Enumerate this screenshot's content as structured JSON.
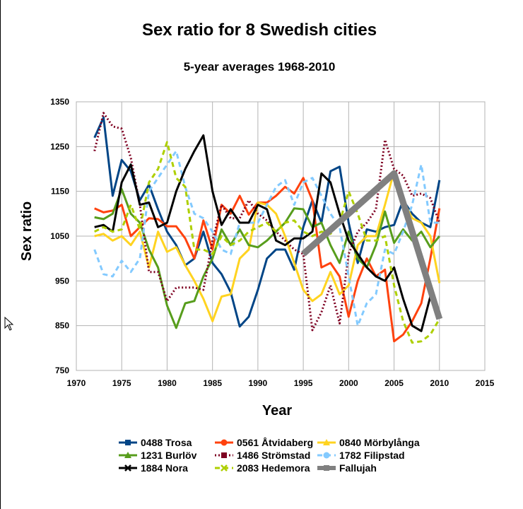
{
  "chart_data": {
    "type": "line",
    "title": "Sex ratio for 8 Swedish cities",
    "subtitle": "5-year averages 1968-2010",
    "xlabel": "Year",
    "ylabel": "Sex ratio",
    "xlim": [
      1970,
      2015
    ],
    "ylim": [
      750,
      1350
    ],
    "xticks": [
      1970,
      1975,
      1980,
      1985,
      1990,
      1995,
      2000,
      2005,
      2010,
      2015
    ],
    "yticks": [
      750,
      850,
      950,
      1050,
      1150,
      1250,
      1350
    ],
    "grid": true,
    "legend_position": "bottom",
    "x": [
      1972,
      1973,
      1974,
      1975,
      1976,
      1977,
      1978,
      1979,
      1980,
      1981,
      1982,
      1983,
      1984,
      1985,
      1986,
      1987,
      1988,
      1989,
      1990,
      1991,
      1992,
      1993,
      1994,
      1995,
      1996,
      1997,
      1998,
      1999,
      2000,
      2001,
      2002,
      2003,
      2004,
      2005,
      2006,
      2007,
      2008,
      2009,
      2010
    ],
    "series": [
      {
        "name": "0488 Trosa",
        "color": "#004586",
        "style": "solid",
        "width": 3,
        "marker": "square",
        "values": [
          1270,
          1315,
          1140,
          1220,
          1195,
          1130,
          1165,
          1110,
          1060,
          1030,
          985,
          1000,
          1060,
          990,
          965,
          925,
          848,
          870,
          930,
          1000,
          1020,
          1020,
          975,
          1070,
          1130,
          1080,
          1195,
          1205,
          1080,
          990,
          1065,
          1060,
          1070,
          1075,
          1130,
          1100,
          1080,
          1070,
          1175
        ]
      },
      {
        "name": "0561 Åtvidaberg",
        "color": "#ff420e",
        "style": "solid",
        "width": 3,
        "marker": "circle",
        "values": [
          1112,
          1103,
          1107,
          1120,
          1050,
          1070,
          1090,
          1088,
          1072,
          1072,
          1045,
          1000,
          1085,
          1020,
          1120,
          1100,
          1140,
          1098,
          1125,
          1125,
          1140,
          1160,
          1145,
          1180,
          1130,
          980,
          990,
          960,
          870,
          950,
          1000,
          960,
          975,
          815,
          830,
          860,
          900,
          1000,
          1112
        ]
      },
      {
        "name": "0840 Mörbylånga",
        "color": "#ffd320",
        "style": "solid",
        "width": 3,
        "marker": "triangle",
        "values": [
          1050,
          1055,
          1040,
          1050,
          1030,
          1060,
          980,
          1060,
          1015,
          1025,
          985,
          950,
          910,
          860,
          915,
          920,
          1000,
          1020,
          1125,
          1120,
          1100,
          1050,
          990,
          930,
          905,
          920,
          970,
          920,
          940,
          1030,
          1050,
          1050,
          1120,
          1195,
          1130,
          1090,
          1080,
          1050,
          945
        ]
      },
      {
        "name": "1231 Burlöv",
        "color": "#579d1c",
        "style": "solid",
        "width": 3,
        "marker": "triangle",
        "values": [
          1092,
          1088,
          1100,
          1155,
          1100,
          1080,
          1020,
          980,
          895,
          845,
          900,
          905,
          960,
          1000,
          1065,
          1030,
          1065,
          1030,
          1025,
          1040,
          1060,
          1080,
          1112,
          1110,
          1070,
          1080,
          1030,
          990,
          1060,
          1000,
          980,
          1030,
          1105,
          1035,
          1065,
          1040,
          1060,
          1025,
          1050
        ]
      },
      {
        "name": "1486 Strömstad",
        "color": "#7e0021",
        "style": "dotted",
        "width": 3,
        "marker": "square",
        "values": [
          1240,
          1325,
          1295,
          1290,
          1225,
          1120,
          970,
          970,
          905,
          935,
          935,
          935,
          930,
          1040,
          1120,
          1090,
          1090,
          1130,
          1100,
          1085,
          1060,
          1040,
          1020,
          1010,
          840,
          880,
          940,
          855,
          1010,
          1060,
          1080,
          1110,
          1265,
          1200,
          1185,
          1140,
          1145,
          1135,
          1080
        ]
      },
      {
        "name": "1782 Filipstad",
        "color": "#83caff",
        "style": "dashed",
        "width": 3,
        "marker": "circle",
        "values": [
          1020,
          965,
          960,
          995,
          970,
          1000,
          1150,
          1180,
          1210,
          1240,
          1160,
          1100,
          1090,
          1060,
          1020,
          1010,
          1080,
          1080,
          1080,
          1120,
          1160,
          1175,
          1120,
          1170,
          1180,
          1140,
          1100,
          1070,
          960,
          850,
          900,
          920,
          1020,
          1010,
          1060,
          1120,
          1210,
          1080,
          1080
        ]
      },
      {
        "name": "1884 Nora",
        "color": "#000000",
        "style": "solid",
        "width": 3,
        "marker": "cross",
        "values": [
          1070,
          1075,
          1060,
          1170,
          1210,
          1120,
          1125,
          1070,
          1080,
          1150,
          1200,
          1240,
          1275,
          1150,
          1075,
          1110,
          1080,
          1080,
          1120,
          1110,
          1040,
          1030,
          1045,
          1045,
          1060,
          1190,
          1170,
          1100,
          1040,
          1010,
          980,
          960,
          950,
          980,
          910,
          850,
          838,
          915,
          875
        ]
      },
      {
        "name": "2083 Hedemora",
        "color": "#aecf00",
        "style": "dashed",
        "width": 3,
        "marker": "cross",
        "values": [
          1060,
          1070,
          1060,
          1065,
          1120,
          1065,
          1170,
          1200,
          1260,
          1180,
          1160,
          1020,
          1020,
          1010,
          1050,
          1030,
          1040,
          1060,
          1070,
          1080,
          1060,
          1080,
          1085,
          1060,
          1050,
          1060,
          1055,
          1080,
          1150,
          1100,
          1040,
          1040,
          1050,
          940,
          860,
          812,
          815,
          830,
          865
        ]
      },
      {
        "name": "Fallujah",
        "color": "#808080",
        "style": "solid",
        "width": 9,
        "marker": "square",
        "x": [
          1995,
          2005,
          2010
        ],
        "values": [
          1010,
          1190,
          865
        ]
      }
    ]
  }
}
